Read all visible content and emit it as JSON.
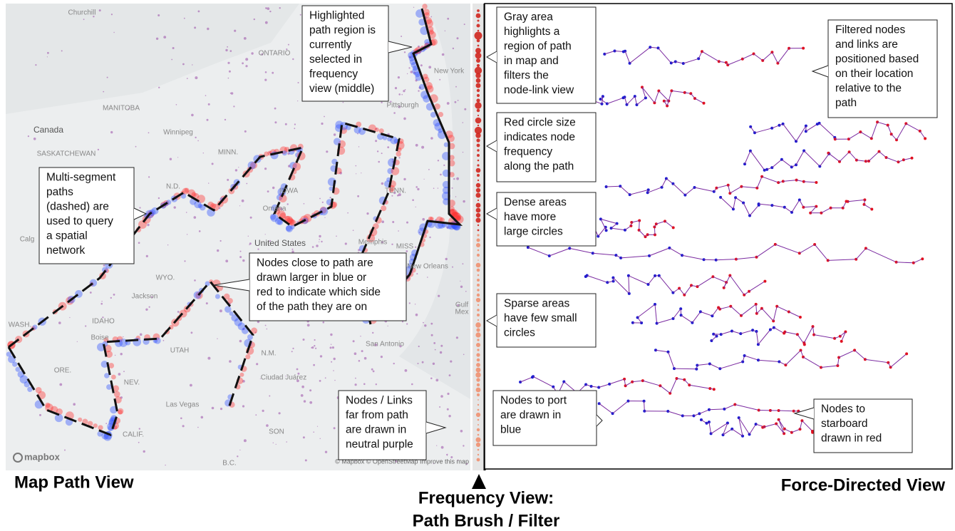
{
  "map_labels": [
    "Churchill",
    "ONTARIO",
    "MANITOBA",
    "Canada",
    "Winnipeg",
    "SASKATCHEWAN",
    "N.D.",
    "MINN.",
    "IOWA",
    "Omaha",
    "United States",
    "Calg",
    "WYO.",
    "Jackson",
    "IDAHO",
    "Boise",
    "UTAH",
    "WASH.",
    "ORE.",
    "NEV.",
    "Las Vegas",
    "CALIF.",
    "N.M.",
    "Ciudad Juárez",
    "San Antonio",
    "SON",
    "Memphis",
    "TENN.",
    "New Orleans",
    "MISS",
    "New York",
    "Pittsburgh",
    "Gulf",
    "Mex",
    "B.C."
  ],
  "map_logo": "mapbox",
  "map_attribution": "© Mapbox © OpenStreetMap Improve this map",
  "annotations": [
    {
      "lines": [
        "Highlighted",
        "path region is",
        "currently",
        "selected in",
        "frequency",
        "view (middle)"
      ]
    },
    {
      "lines": [
        "Multi-segment",
        "paths",
        "(dashed) are",
        "used to query",
        "a spatial",
        "network"
      ]
    },
    {
      "lines": [
        "Nodes close to path are",
        "drawn larger in blue or",
        "red to indicate which side",
        "of the path they are on"
      ]
    },
    {
      "lines": [
        "Nodes / Links",
        "far from path",
        "are drawn in",
        "neutral purple"
      ]
    },
    {
      "lines": [
        "Gray area",
        "highlights a",
        "region of path",
        "in map and",
        "filters the",
        "node-link view"
      ]
    },
    {
      "lines": [
        "Red circle size",
        "indicates node",
        "frequency",
        "along the path"
      ]
    },
    {
      "lines": [
        "Dense areas",
        "have more",
        "large circles"
      ]
    },
    {
      "lines": [
        "Sparse areas",
        "have few small",
        "circles"
      ]
    },
    {
      "lines": [
        "Nodes to port",
        "are drawn in",
        "blue"
      ]
    },
    {
      "lines": [
        "Filtered nodes",
        "and links are",
        "positioned based",
        "on their location",
        "relative to the",
        "path"
      ]
    },
    {
      "lines": [
        "Nodes to",
        "starboard",
        "drawn in red"
      ]
    }
  ],
  "captions": {
    "map": "Map Path View",
    "frequency": [
      "Frequency View:",
      "Path Brush / Filter"
    ],
    "force": "Force-Directed View"
  }
}
